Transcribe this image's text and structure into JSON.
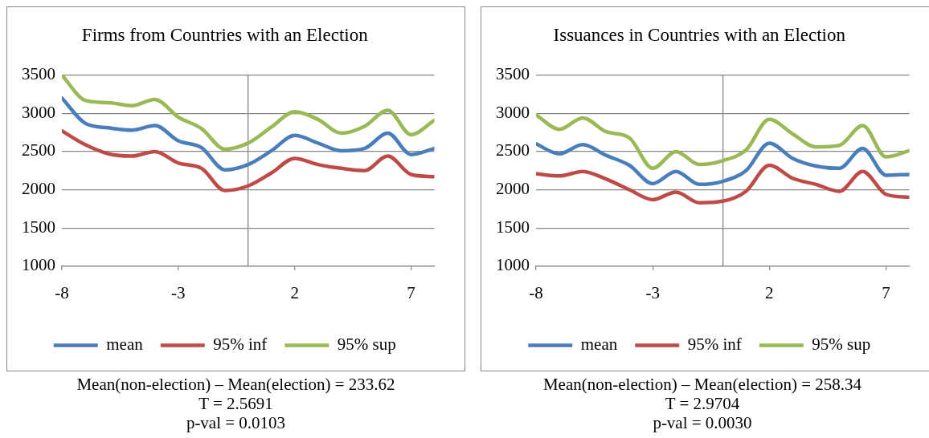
{
  "chart_data": [
    {
      "type": "line",
      "title": "Firms from Countries with an Election",
      "x": [
        -8,
        -7,
        -6,
        -5,
        -4,
        -3,
        -2,
        -1,
        0,
        1,
        2,
        3,
        4,
        5,
        6,
        7,
        8
      ],
      "series": [
        {
          "name": "mean",
          "color": "#4a7ebb",
          "values": [
            3200,
            2870,
            2810,
            2780,
            2840,
            2640,
            2550,
            2260,
            2330,
            2510,
            2710,
            2610,
            2510,
            2540,
            2740,
            2460,
            2540
          ]
        },
        {
          "name": "95% inf",
          "color": "#be4b48",
          "values": [
            2770,
            2590,
            2470,
            2440,
            2500,
            2350,
            2280,
            1990,
            2050,
            2220,
            2410,
            2330,
            2280,
            2250,
            2440,
            2200,
            2170
          ]
        },
        {
          "name": "95% sup",
          "color": "#98b954",
          "values": [
            3500,
            3170,
            3140,
            3100,
            3180,
            2950,
            2800,
            2530,
            2610,
            2820,
            3020,
            2920,
            2740,
            2830,
            3040,
            2720,
            2910
          ]
        }
      ],
      "xlim": [
        -8,
        8
      ],
      "xticks": [
        -8,
        -3,
        2,
        7
      ],
      "ylim": [
        1000,
        3500
      ],
      "yticks": [
        1000,
        1500,
        2000,
        2500,
        3000,
        3500
      ],
      "grid": "y",
      "legend": "bottom",
      "marker": "none",
      "line_style": "solid",
      "annotations": [
        "Mean(non-election) – Mean(election) = 233.62",
        "T = 2.5691",
        "p-val = 0.0103"
      ]
    },
    {
      "type": "line",
      "title": "Issuances in Countries with an Election",
      "x": [
        -8,
        -7,
        -6,
        -5,
        -4,
        -3,
        -2,
        -1,
        0,
        1,
        2,
        3,
        4,
        5,
        6,
        7,
        8
      ],
      "series": [
        {
          "name": "mean",
          "color": "#4a7ebb",
          "values": [
            2600,
            2470,
            2590,
            2450,
            2320,
            2080,
            2240,
            2070,
            2110,
            2250,
            2610,
            2410,
            2310,
            2280,
            2540,
            2190,
            2200
          ]
        },
        {
          "name": "95% inf",
          "color": "#be4b48",
          "values": [
            2210,
            2180,
            2240,
            2140,
            2000,
            1870,
            1970,
            1830,
            1850,
            1980,
            2320,
            2150,
            2070,
            1980,
            2240,
            1940,
            1900
          ]
        },
        {
          "name": "95% sup",
          "color": "#98b954",
          "values": [
            2980,
            2790,
            2940,
            2760,
            2680,
            2280,
            2500,
            2330,
            2380,
            2520,
            2920,
            2730,
            2560,
            2580,
            2840,
            2430,
            2510
          ]
        }
      ],
      "xlim": [
        -8,
        8
      ],
      "xticks": [
        -8,
        -3,
        2,
        7
      ],
      "ylim": [
        1000,
        3500
      ],
      "yticks": [
        1000,
        1500,
        2000,
        2500,
        3000,
        3500
      ],
      "grid": "y",
      "legend": "bottom",
      "marker": "none",
      "line_style": "solid",
      "annotations": [
        "Mean(non-election) – Mean(election) = 258.34",
        "T = 2.9704",
        "p-val = 0.0030"
      ]
    }
  ]
}
